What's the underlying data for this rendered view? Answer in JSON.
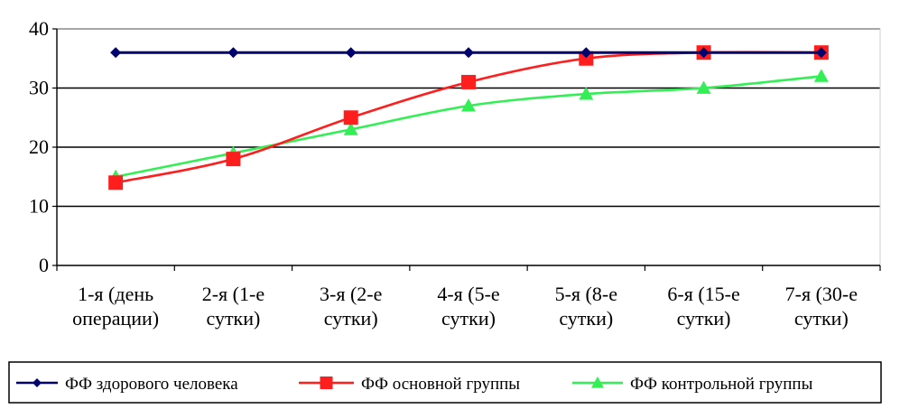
{
  "chart_data": {
    "type": "line",
    "categories": [
      [
        "1-я (день",
        "операции)"
      ],
      [
        "2-я (1-е",
        "сутки)"
      ],
      [
        "3-я (2-е",
        "сутки)"
      ],
      [
        "4-я (5-е",
        "сутки)"
      ],
      [
        "5-я (8-е",
        "сутки)"
      ],
      [
        "6-я (15-е",
        "сутки)"
      ],
      [
        "7-я (30-е",
        "сутки)"
      ]
    ],
    "series": [
      {
        "name": "ФФ здорового человека",
        "color": "#00006e",
        "marker": "diamond",
        "values": [
          36,
          36,
          36,
          36,
          36,
          36,
          36
        ]
      },
      {
        "name": "ФФ основной группы",
        "color": "#ff1e1e",
        "marker": "square",
        "values": [
          14,
          18,
          25,
          31,
          35,
          36,
          36
        ]
      },
      {
        "name": "ФФ контрольной группы",
        "color": "#33ee55",
        "marker": "triangle",
        "values": [
          15,
          19,
          23,
          27,
          29,
          30,
          32
        ]
      }
    ],
    "ylim": [
      0,
      40
    ],
    "yticks": [
      0,
      10,
      20,
      30,
      40
    ],
    "grid": true,
    "legend": "bottom"
  }
}
